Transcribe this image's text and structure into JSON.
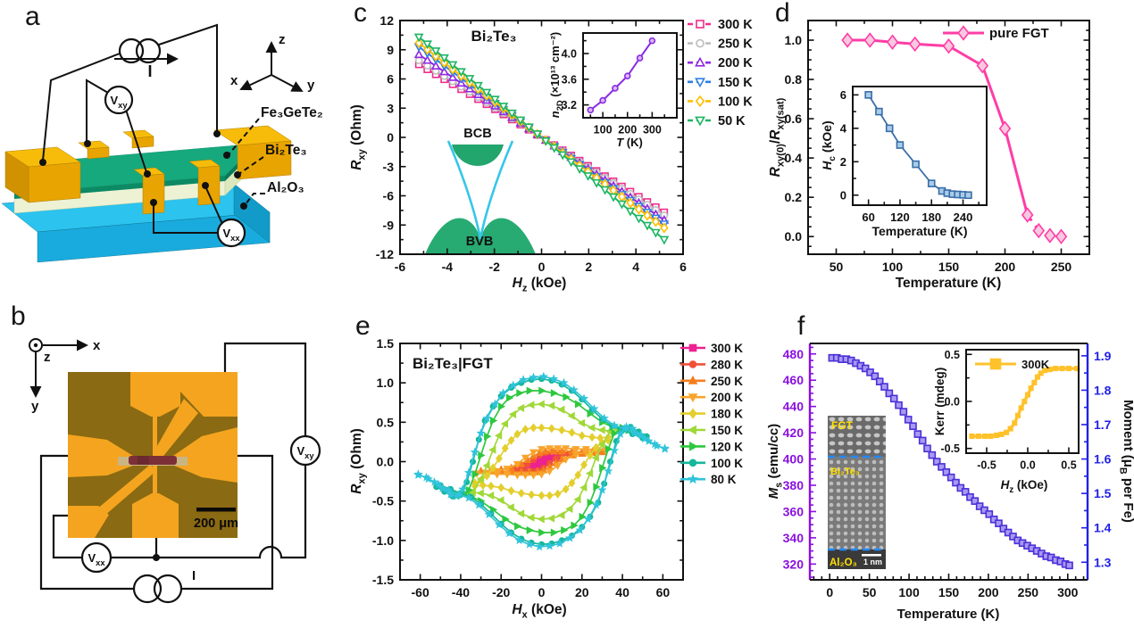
{
  "panels": {
    "a": {
      "label": "a",
      "current_label": "I",
      "voltmeter_xy": "V_{xy}",
      "voltmeter_xx": "V_{xx}",
      "axis_x": "x",
      "axis_y": "y",
      "axis_z": "z",
      "layer_labels": [
        "Fe₃GeTe₂",
        "Bi₂Te₃",
        "Al₂O₃"
      ]
    },
    "b": {
      "label": "b",
      "axis_x": "x",
      "axis_y": "y",
      "axis_z": "z",
      "voltmeter_xy": "V_{xy}",
      "voltmeter_xx": "V_{xx}",
      "current_label": "I",
      "scale_bar": "200 μm"
    },
    "c": {
      "label": "c",
      "band_inset": {
        "conduction_band": "BCB",
        "valence_band": "BVB"
      }
    },
    "d": {
      "label": "d"
    },
    "e": {
      "label": "e"
    },
    "f": {
      "label": "f",
      "tem_inset": {
        "layers": [
          "FGT",
          "Bi₂Te₃",
          "Al₂O₃"
        ],
        "scale_bar": "1 nm"
      }
    }
  },
  "chart_data": [
    {
      "id": "c-main",
      "type": "line",
      "title": "Bi₂Te₃",
      "xlabel": "*H*_{z} (kOe)",
      "ylabel": "*R*_{xy} (Ohm)",
      "xlim": [
        -6,
        6
      ],
      "ylim": [
        -12,
        12
      ],
      "xticks": [
        -6,
        -4,
        -2,
        0,
        2,
        4,
        6
      ],
      "yticks": [
        -12,
        -9,
        -6,
        -3,
        0,
        3,
        6,
        9,
        12
      ],
      "legend_position": "outside-right",
      "grid": false,
      "series": [
        {
          "name": "300 K",
          "color": "#EE2E8C",
          "marker": "sq",
          "open": true,
          "x": [
            -5.2,
            -2.6,
            0,
            2.6,
            5.2
          ],
          "y": [
            7.5,
            3.8,
            0,
            -3.85,
            -7.7
          ]
        },
        {
          "name": "250 K",
          "color": "#BDBDBD",
          "marker": "ci",
          "open": true,
          "x": [
            -5.2,
            -2.6,
            0,
            2.6,
            5.2
          ],
          "y": [
            7.9,
            4.0,
            0,
            -4.0,
            -8.0
          ]
        },
        {
          "name": "200 K",
          "color": "#9128E2",
          "marker": "tu",
          "open": true,
          "x": [
            -5.2,
            -2.6,
            0,
            2.6,
            5.2
          ],
          "y": [
            8.5,
            4.25,
            0,
            -4.25,
            -8.5
          ]
        },
        {
          "name": "150 K",
          "color": "#2F7FE6",
          "marker": "td",
          "open": true,
          "x": [
            -5.2,
            -2.6,
            0,
            2.6,
            5.2
          ],
          "y": [
            9.3,
            4.6,
            0,
            -4.5,
            -8.9
          ]
        },
        {
          "name": "100 K",
          "color": "#FFBE00",
          "marker": "di",
          "open": true,
          "x": [
            -5.2,
            -2.6,
            0,
            2.6,
            5.2
          ],
          "y": [
            9.7,
            4.8,
            0,
            -4.65,
            -9.3
          ]
        },
        {
          "name": "50 K",
          "color": "#1DB564",
          "marker": "td",
          "open": true,
          "x": [
            -5.2,
            -2.6,
            0,
            2.6,
            5.2
          ],
          "y": [
            10.3,
            5.15,
            0,
            -5.2,
            -10.5
          ]
        }
      ]
    },
    {
      "id": "c-n2d",
      "type": "line",
      "xlabel": "*T* (K)",
      "ylabel": "*n*_{2D} (×10¹³ cm⁻²)",
      "xlim": [
        20,
        400
      ],
      "ylim": [
        3.0,
        4.32
      ],
      "xticks": [
        100,
        200,
        300
      ],
      "yticks": [
        3.2,
        3.6,
        4.0
      ],
      "series": [
        {
          "name": "n2D",
          "color": "#8A2BE2",
          "marker": "ci",
          "mfill": "#D9B8F7",
          "x": [
            50,
            100,
            150,
            200,
            250,
            300
          ],
          "y": [
            3.12,
            3.27,
            3.46,
            3.65,
            3.93,
            4.2
          ]
        }
      ]
    },
    {
      "id": "d-main",
      "type": "line",
      "xlabel": "Temperature (K)",
      "ylabel": "*R*_{xy(0)}/*R*_{xy(sat)}",
      "xlim": [
        25,
        275
      ],
      "ylim": [
        -0.09,
        1.1
      ],
      "xticks": [
        50,
        100,
        150,
        200,
        250
      ],
      "yticks": [
        0.0,
        0.2,
        0.4,
        0.6,
        0.8,
        1.0
      ],
      "legend_position": "inside-top-right",
      "series": [
        {
          "name": "pure FGT",
          "color": "#FF3DA6",
          "marker": "di",
          "mfill": "#F8C8E0",
          "x": [
            60,
            80,
            100,
            120,
            150,
            180,
            200,
            220,
            230,
            240,
            250
          ],
          "y": [
            1.0,
            1.0,
            0.99,
            0.98,
            0.97,
            0.87,
            0.55,
            0.11,
            0.03,
            0.005,
            0.0
          ]
        }
      ]
    },
    {
      "id": "d-hc",
      "type": "line",
      "xlabel": "Temperature (K)",
      "ylabel": "*H*_{c} (kOe)",
      "xlim": [
        30,
        285
      ],
      "ylim": [
        -0.6,
        6.5
      ],
      "xticks": [
        60,
        120,
        180,
        240
      ],
      "yticks": [
        0,
        2,
        4,
        6
      ],
      "series": [
        {
          "name": "Hc",
          "color": "#3A6EA8",
          "marker": "sq",
          "mfill": "#A9CCE9",
          "x": [
            60,
            80,
            100,
            120,
            150,
            180,
            200,
            210,
            220,
            230,
            240,
            250
          ],
          "y": [
            6.0,
            5.0,
            4.0,
            3.0,
            1.85,
            0.7,
            0.25,
            0.12,
            0.06,
            0.04,
            0.02,
            0.0
          ]
        }
      ]
    },
    {
      "id": "e-main",
      "type": "line",
      "title": "Bi₂Te₃|FGT",
      "xlabel": "*H*_{x} (kOe)",
      "ylabel": "*R*_{xy} (Ohm)",
      "xlim": [
        -70,
        70
      ],
      "ylim": [
        -1.5,
        1.5
      ],
      "xticks": [
        -60,
        -40,
        -20,
        0,
        20,
        40,
        60
      ],
      "yticks": [
        -1.5,
        -1.0,
        -0.5,
        0.0,
        0.5,
        1.0,
        1.5
      ],
      "legend_position": "outside-right",
      "loop_note": "upper branch stored; lower branch is point-mirror",
      "series": [
        {
          "name": "300 K",
          "color": "#EC2290",
          "marker": "sq",
          "x": [
            -10,
            -7,
            -4,
            -2,
            0,
            2,
            5,
            8,
            10
          ],
          "y": [
            -0.05,
            -0.04,
            -0.01,
            0.02,
            0.04,
            0.05,
            0.06,
            0.05,
            0.05
          ]
        },
        {
          "name": "280 K",
          "color": "#F0503A",
          "marker": "ci",
          "x": [
            -13,
            -10,
            -7,
            -4,
            -1,
            2,
            5,
            8,
            11,
            13
          ],
          "y": [
            -0.1,
            -0.08,
            -0.04,
            0.02,
            0.08,
            0.11,
            0.12,
            0.12,
            0.11,
            0.1
          ]
        },
        {
          "name": "250 K",
          "color": "#F57E1E",
          "marker": "tu",
          "x": [
            -30,
            -25,
            -20,
            -15,
            -10,
            -7,
            -4,
            -1,
            2,
            6,
            10,
            15,
            20,
            25,
            30
          ],
          "y": [
            -0.12,
            -0.11,
            -0.1,
            -0.08,
            -0.03,
            0.02,
            0.07,
            0.11,
            0.13,
            0.13,
            0.13,
            0.13,
            0.12,
            0.12,
            0.12
          ]
        },
        {
          "name": "200 K",
          "color": "#F8A42C",
          "marker": "td",
          "x": [
            -32,
            -27,
            -22,
            -17,
            -12,
            -8,
            -4,
            0,
            4,
            8,
            12,
            17,
            22,
            27,
            32
          ],
          "y": [
            -0.15,
            -0.14,
            -0.12,
            -0.09,
            -0.03,
            0.05,
            0.12,
            0.16,
            0.17,
            0.17,
            0.17,
            0.16,
            0.16,
            0.15,
            0.15
          ]
        },
        {
          "name": "180 K",
          "color": "#E3CE2C",
          "marker": "di",
          "x": [
            -33,
            -30,
            -27,
            -24,
            -21,
            -18,
            -15,
            -12,
            -8,
            -4,
            0,
            5,
            10,
            15,
            20,
            25,
            29,
            33
          ],
          "y": [
            -0.27,
            -0.24,
            -0.18,
            -0.08,
            0.04,
            0.17,
            0.27,
            0.35,
            0.41,
            0.43,
            0.43,
            0.42,
            0.4,
            0.37,
            0.33,
            0.31,
            0.3,
            0.31
          ]
        },
        {
          "name": "150 K",
          "color": "#A0D838",
          "marker": "tl",
          "x": [
            -38,
            -34,
            -30,
            -27,
            -24,
            -21,
            -18,
            -14,
            -10,
            -5,
            0,
            5,
            10,
            15,
            20,
            25,
            30,
            34,
            38
          ],
          "y": [
            -0.42,
            -0.38,
            -0.22,
            -0.05,
            0.15,
            0.33,
            0.48,
            0.6,
            0.68,
            0.72,
            0.73,
            0.71,
            0.66,
            0.58,
            0.49,
            0.43,
            0.4,
            0.39,
            0.41
          ]
        },
        {
          "name": "120 K",
          "color": "#2EC83E",
          "marker": "tr",
          "x": [
            -43,
            -40,
            -36,
            -33,
            -30,
            -27,
            -24,
            -20,
            -16,
            -11,
            -6,
            0,
            6,
            12,
            18,
            24,
            30,
            35,
            39,
            43
          ],
          "y": [
            -0.4,
            -0.43,
            -0.36,
            -0.16,
            0.08,
            0.32,
            0.52,
            0.7,
            0.81,
            0.87,
            0.9,
            0.9,
            0.87,
            0.82,
            0.73,
            0.61,
            0.5,
            0.44,
            0.41,
            0.4
          ]
        },
        {
          "name": "100 K",
          "color": "#16B79C",
          "marker": "ci",
          "x": [
            -52,
            -48,
            -44,
            -40,
            -37,
            -34,
            -31,
            -28,
            -24,
            -20,
            -15,
            -10,
            -5,
            0,
            5,
            10,
            15,
            20,
            25,
            30,
            35,
            40,
            45,
            50
          ],
          "y": [
            -0.32,
            -0.38,
            -0.44,
            -0.42,
            -0.26,
            0,
            0.28,
            0.52,
            0.7,
            0.83,
            0.94,
            1.0,
            1.04,
            1.05,
            1.03,
            0.98,
            0.9,
            0.79,
            0.66,
            0.54,
            0.45,
            0.4,
            0.35,
            0.3
          ]
        },
        {
          "name": "80 K",
          "color": "#30C4DA",
          "marker": "st",
          "x": [
            -61,
            -57,
            -53,
            -49,
            -45,
            -42,
            -39,
            -36,
            -33,
            -30,
            -27,
            -23,
            -19,
            -14,
            -9,
            -4,
            1,
            6,
            11,
            16,
            21,
            26,
            31,
            36,
            41,
            46,
            51,
            56,
            61
          ],
          "y": [
            -0.17,
            -0.2,
            -0.26,
            -0.34,
            -0.42,
            -0.44,
            -0.35,
            -0.14,
            0.12,
            0.36,
            0.55,
            0.73,
            0.87,
            0.97,
            1.04,
            1.07,
            1.08,
            1.05,
            1.0,
            0.91,
            0.8,
            0.67,
            0.55,
            0.46,
            0.42,
            0.36,
            0.29,
            0.22,
            0.16
          ]
        }
      ]
    },
    {
      "id": "f-main",
      "type": "scatter",
      "xlabel": "Temperature (K)",
      "ylabel": "*M*_{s} (emu/cc)",
      "ylabel_right": "Moment (μ_{B} per Fe)",
      "xlim": [
        -25,
        325
      ],
      "ylim": [
        308,
        488
      ],
      "xticks": [
        0,
        50,
        100,
        150,
        200,
        250,
        300
      ],
      "yticks": [
        320,
        340,
        360,
        380,
        400,
        420,
        440,
        460,
        480
      ],
      "left_color": "#8A10E0",
      "right_color": "#2121E6",
      "right_axis": {
        "ticks": [
          1.3,
          1.4,
          1.5,
          1.6,
          1.7,
          1.8,
          1.9
        ],
        "ms_at_first_tick": 321.4,
        "ms_per_unit": 262
      },
      "series": [
        {
          "name": "Ms",
          "color": "#4C2FD8",
          "marker": "sq",
          "mfill": "#A89AF2",
          "x": [
            3,
            9,
            15,
            21,
            27,
            33,
            39,
            45,
            51,
            57,
            63,
            69,
            75,
            81,
            87,
            93,
            99,
            105,
            111,
            117,
            123,
            129,
            135,
            141,
            147,
            153,
            159,
            165,
            171,
            177,
            183,
            189,
            195,
            201,
            207,
            213,
            219,
            225,
            231,
            237,
            243,
            249,
            255,
            261,
            267,
            273,
            279,
            285,
            291,
            297,
            302
          ],
          "y": [
            477,
            477,
            476,
            476,
            475,
            473,
            471,
            469,
            466,
            463,
            459,
            455,
            450,
            446,
            441,
            436,
            430,
            425,
            419,
            414,
            408,
            403,
            398,
            394,
            390,
            386,
            382,
            378,
            375,
            371,
            368,
            364,
            361,
            358,
            354,
            351,
            347,
            344,
            341,
            338,
            336,
            334,
            332,
            330,
            328,
            326,
            325,
            323,
            322,
            320,
            319
          ]
        }
      ]
    },
    {
      "id": "f-kerr",
      "type": "line",
      "xlabel": "*H*_{z} (kOe)",
      "ylabel": "Kerr (mdeg)",
      "xlim": [
        -0.75,
        0.62
      ],
      "ylim": [
        -0.55,
        0.55
      ],
      "xticks": [
        -0.5,
        0.0,
        0.5
      ],
      "yticks": [
        -0.5,
        0.0,
        0.5
      ],
      "legend_position": "inside-top-left",
      "series": [
        {
          "name": "300K",
          "color": "#FFC22B",
          "marker": "sq",
          "x": [
            -0.68,
            -0.6,
            -0.52,
            -0.45,
            -0.38,
            -0.32,
            -0.26,
            -0.21,
            -0.16,
            -0.12,
            -0.08,
            -0.04,
            0,
            0.04,
            0.08,
            0.12,
            0.16,
            0.21,
            0.27,
            0.34,
            0.42,
            0.5,
            0.6
          ],
          "y": [
            -0.37,
            -0.37,
            -0.37,
            -0.37,
            -0.36,
            -0.35,
            -0.33,
            -0.29,
            -0.23,
            -0.15,
            -0.07,
            0.0,
            0.07,
            0.14,
            0.2,
            0.26,
            0.3,
            0.33,
            0.34,
            0.35,
            0.35,
            0.35,
            0.35
          ]
        }
      ]
    }
  ]
}
